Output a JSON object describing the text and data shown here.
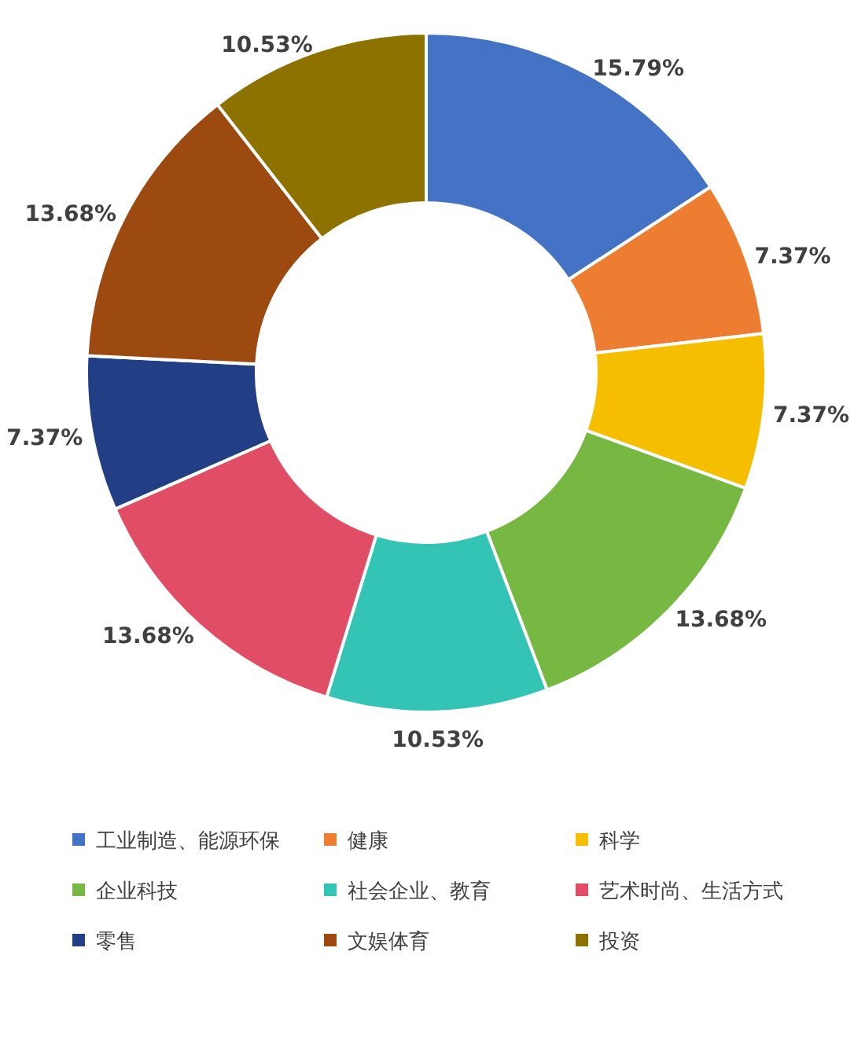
{
  "chart_data": {
    "type": "donut",
    "categories": [
      "工业制造、能源环保",
      "健康",
      "科学",
      "企业科技",
      "社会企业、教育",
      "艺术时尚、生活方式",
      "零售",
      "文娱体育",
      "投资"
    ],
    "values": [
      15.79,
      7.37,
      7.37,
      13.68,
      10.53,
      13.68,
      7.37,
      13.68,
      10.53
    ],
    "value_labels": [
      "15.79%",
      "7.37%",
      "7.37%",
      "13.68%",
      "10.53%",
      "13.68%",
      "7.37%",
      "13.68%",
      "10.53%"
    ],
    "colors": [
      "#4472c4",
      "#ed7d31",
      "#f5bf00",
      "#77b843",
      "#33c4b6",
      "#e04d65",
      "#223f86",
      "#9c4a10",
      "#8e7200"
    ],
    "legend": "bottom"
  }
}
